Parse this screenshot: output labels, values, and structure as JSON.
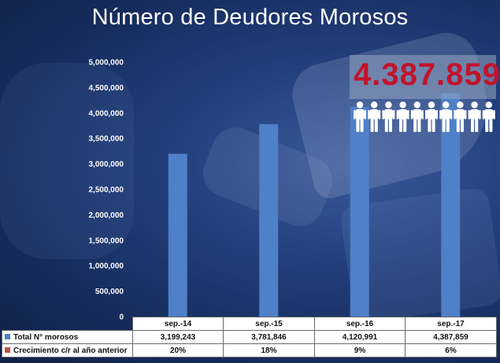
{
  "colors": {
    "bar": "#4f80c8",
    "series2": "#c0504d",
    "callout": "#c0142a"
  },
  "callout": {
    "text": "4.387.859",
    "icon": "person-icon"
  },
  "chart_data": {
    "type": "bar",
    "title": "Número de Deudores Morosos",
    "xlabel": "",
    "ylabel": "",
    "ylim": [
      0,
      5000000
    ],
    "ytick_values": [
      0,
      500000,
      1000000,
      1500000,
      2000000,
      2500000,
      3000000,
      3500000,
      4000000,
      4500000,
      5000000
    ],
    "ytick_labels": [
      "0",
      "500,000",
      "1,000,000",
      "1,500,000",
      "2,000,000",
      "2,500,000",
      "3,000,000",
      "3,500,000",
      "4,000,000",
      "4,500,000",
      "5,000,000"
    ],
    "categories": [
      "sep.-14",
      "sep.-15",
      "sep.-16",
      "sep.-17"
    ],
    "series": [
      {
        "name": "Total N° morosos",
        "values": [
          3199243,
          3781846,
          4120991,
          4387859
        ],
        "labels": [
          "3,199,243",
          "3,781,846",
          "4,120,991",
          "4,387,859"
        ]
      },
      {
        "name": "Crecimiento c/r al año anterior",
        "values": [
          20,
          18,
          9,
          6
        ],
        "labels": [
          "20%",
          "18%",
          "9%",
          "6%"
        ]
      }
    ]
  }
}
